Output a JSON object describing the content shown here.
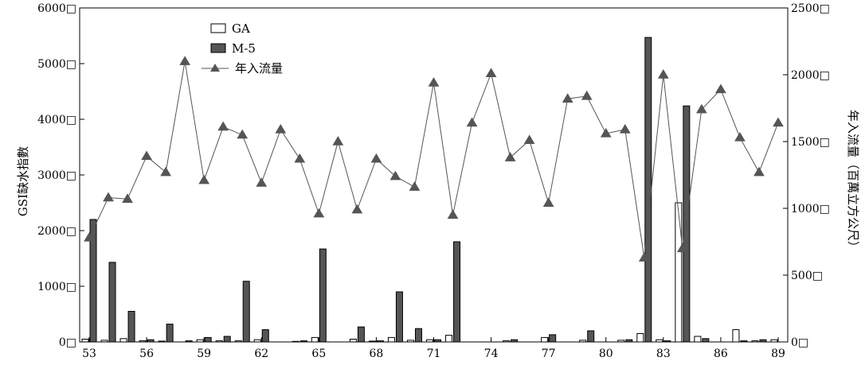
{
  "chart_data": {
    "type": "bar",
    "x": [
      53,
      54,
      55,
      56,
      57,
      58,
      59,
      60,
      61,
      62,
      63,
      64,
      65,
      66,
      67,
      68,
      69,
      70,
      71,
      72,
      73,
      74,
      75,
      76,
      77,
      78,
      79,
      80,
      81,
      82,
      83,
      84,
      85,
      86,
      87,
      88,
      89
    ],
    "x_tick_labels": [
      "53",
      "56",
      "59",
      "62",
      "65",
      "68",
      "71",
      "74",
      "77",
      "80",
      "83",
      "86",
      "89"
    ],
    "ylim_left": [
      0,
      6000
    ],
    "ylim_right": [
      0,
      2500
    ],
    "y_ticks_left": [
      "0",
      "1000",
      "2000",
      "3000",
      "4000",
      "5000",
      "6000"
    ],
    "y_ticks_right": [
      "0",
      "500",
      "1000",
      "1500",
      "2000",
      "2500"
    ],
    "tick_mark_glyph": "□",
    "ylabel_left": "GSI缺水指數",
    "ylabel_right": "年入流量（百萬立方公尺）",
    "legend_position": "top-left",
    "series": [
      {
        "name": "GA",
        "kind": "bar",
        "axis": "left",
        "color": "#ffffff",
        "values": [
          50,
          30,
          60,
          20,
          15,
          0,
          40,
          20,
          20,
          40,
          0,
          10,
          80,
          0,
          50,
          15,
          80,
          30,
          40,
          120,
          0,
          0,
          20,
          0,
          80,
          0,
          30,
          0,
          30,
          150,
          40,
          2500,
          100,
          0,
          220,
          20,
          40
        ]
      },
      {
        "name": "M-5",
        "kind": "bar",
        "axis": "left",
        "color": "#555555",
        "values": [
          2200,
          1430,
          550,
          40,
          320,
          20,
          80,
          100,
          1090,
          220,
          0,
          20,
          1670,
          0,
          270,
          20,
          900,
          240,
          40,
          1800,
          0,
          0,
          40,
          0,
          130,
          0,
          200,
          0,
          40,
          5470,
          20,
          4240,
          60,
          0,
          20,
          40,
          0
        ]
      },
      {
        "name": "年入流量",
        "kind": "line",
        "axis": "right",
        "color": "#555555",
        "values": [
          780,
          1080,
          1070,
          1390,
          1270,
          2100,
          1210,
          1610,
          1550,
          1190,
          1590,
          1370,
          960,
          1500,
          990,
          1370,
          1240,
          1160,
          1940,
          950,
          1640,
          2010,
          1380,
          1510,
          1040,
          1820,
          1840,
          1560,
          1590,
          630,
          2000,
          700,
          1740,
          1890,
          1530,
          1270,
          1640
        ]
      }
    ]
  }
}
